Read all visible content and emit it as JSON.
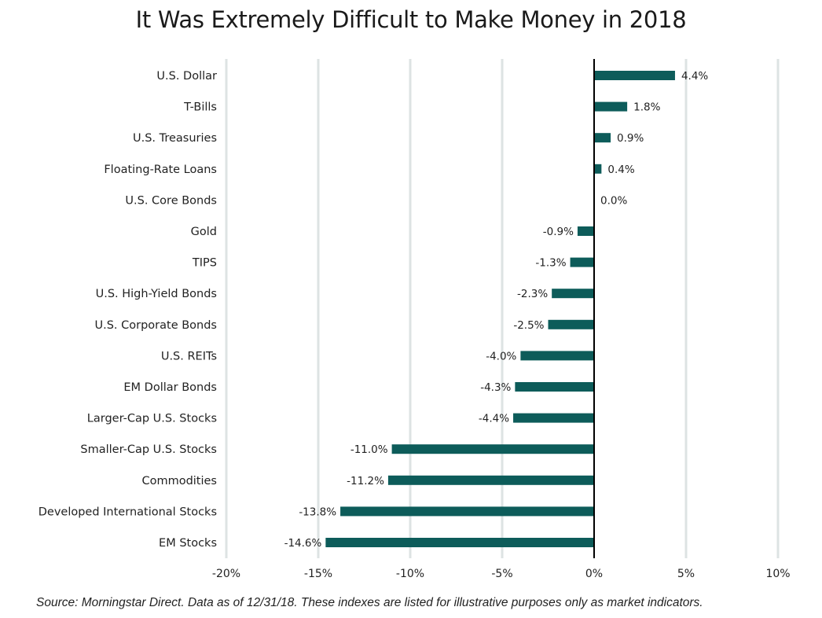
{
  "title": "It Was Extremely Difficult to Make Money in 2018",
  "source": "Source: Morningstar Direct. Data as of 12/31/18. These indexes are listed for illustrative purposes only as market indicators.",
  "chart_data": {
    "type": "bar",
    "orientation": "horizontal",
    "title": "It Was Extremely Difficult to Make Money in 2018",
    "xlabel": "",
    "ylabel": "",
    "xlim": [
      -20,
      10
    ],
    "xticks": [
      -20,
      -15,
      -10,
      -5,
      0,
      5,
      10
    ],
    "xtick_labels": [
      "-20%",
      "-15%",
      "-10%",
      "-5%",
      "0%",
      "5%",
      "10%"
    ],
    "grid": "vertical",
    "bar_color": "#0d5c5a",
    "categories": [
      "U.S. Dollar",
      "T-Bills",
      "U.S. Treasuries",
      "Floating-Rate Loans",
      "U.S. Core Bonds",
      "Gold",
      "TIPS",
      "U.S. High-Yield Bonds",
      "U.S. Corporate Bonds",
      "U.S. REITs",
      "EM Dollar Bonds",
      "Larger-Cap U.S. Stocks",
      "Smaller-Cap U.S. Stocks",
      "Commodities",
      "Developed International Stocks",
      "EM Stocks"
    ],
    "values": [
      4.4,
      1.8,
      0.9,
      0.4,
      0.0,
      -0.9,
      -1.3,
      -2.3,
      -2.5,
      -4.0,
      -4.3,
      -4.4,
      -11.0,
      -11.2,
      -13.8,
      -14.6
    ],
    "value_labels": [
      "4.4%",
      "1.8%",
      "0.9%",
      "0.4%",
      "0.0%",
      "-0.9%",
      "-1.3%",
      "-2.3%",
      "-2.5%",
      "-4.0%",
      "-4.3%",
      "-4.4%",
      "-11.0%",
      "-11.2%",
      "-13.8%",
      "-14.6%"
    ]
  }
}
